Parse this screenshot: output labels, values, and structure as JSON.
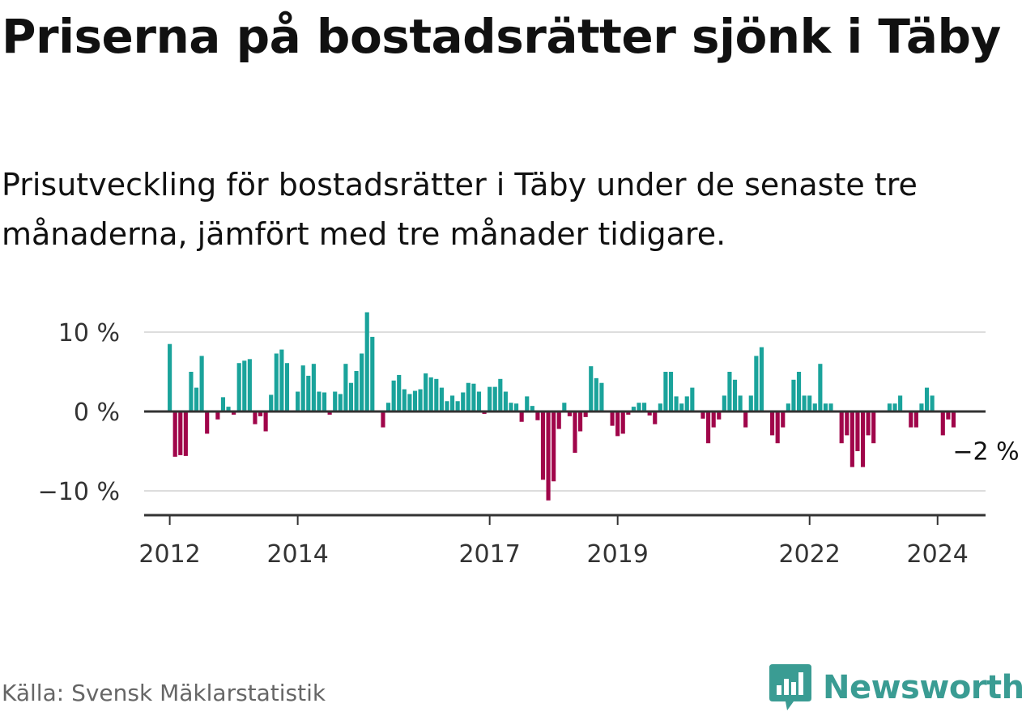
{
  "title": "Priserna på bostadsrätter sjönk i Täby",
  "subtitle": "Prisutveckling för bostadsrätter i Täby under de senaste tre månaderna, jämfört med tre månader tidigare.",
  "source": "Källa: Svensk Mäklarstatistik",
  "brand": {
    "name": "Newsworthy",
    "icon": "bar-chart-speech-bubble-icon"
  },
  "colors": {
    "positive": "#1aa39b",
    "negative": "#a0054a",
    "grid": "#dddddd",
    "axis": "#333333"
  },
  "chart_data": {
    "type": "bar",
    "title": "Priserna på bostadsrätter sjönk i Täby",
    "xlabel": "",
    "ylabel": "",
    "unit": "%",
    "ylim": [
      -13,
      13
    ],
    "y_ticks": [
      {
        "value": 10,
        "label": "10 %"
      },
      {
        "value": 0,
        "label": "0 %"
      },
      {
        "value": -10,
        "label": "−10 %"
      }
    ],
    "x_start": 2012.0,
    "x_step": 0.08333,
    "x_domain": [
      2011.6,
      2024.75
    ],
    "x_ticks": [
      {
        "value": 2012,
        "label": "2012"
      },
      {
        "value": 2014,
        "label": "2014"
      },
      {
        "value": 2017,
        "label": "2017"
      },
      {
        "value": 2019,
        "label": "2019"
      },
      {
        "value": 2022,
        "label": "2022"
      },
      {
        "value": 2024,
        "label": "2024"
      }
    ],
    "end_label": "−2 %",
    "values": [
      8.5,
      -5.7,
      -5.5,
      -5.6,
      5.0,
      3.0,
      7.0,
      -2.8,
      0,
      -1.0,
      1.8,
      0.6,
      -0.4,
      6.1,
      6.4,
      6.6,
      -1.6,
      -0.6,
      -2.5,
      2.1,
      7.3,
      7.8,
      6.1,
      0,
      2.5,
      5.8,
      4.5,
      6.0,
      2.5,
      2.4,
      -0.4,
      2.5,
      2.2,
      6.0,
      3.6,
      5.1,
      7.3,
      12.5,
      9.4,
      0,
      -2.0,
      1.1,
      3.9,
      4.6,
      2.8,
      2.2,
      2.6,
      2.8,
      4.8,
      4.3,
      4.1,
      3.0,
      1.3,
      2.0,
      1.3,
      2.4,
      3.6,
      3.5,
      2.5,
      -0.3,
      3.1,
      3.1,
      4.1,
      2.5,
      1.1,
      1.0,
      -1.3,
      1.9,
      0.7,
      -1.1,
      -8.6,
      -11.2,
      -8.8,
      -2.2,
      1.1,
      -0.6,
      -5.2,
      -2.5,
      -0.7,
      5.7,
      4.2,
      3.6,
      0,
      -1.8,
      -3.1,
      -2.8,
      -0.4,
      0.6,
      1.1,
      1.1,
      -0.5,
      -1.6,
      1.0,
      5.0,
      5.0,
      1.9,
      1.0,
      1.9,
      3.0,
      0,
      -0.9,
      -4.0,
      -2.0,
      -1.0,
      2.0,
      5.0,
      4.0,
      2.0,
      -2.0,
      2.0,
      7.0,
      8.1,
      0,
      -3.0,
      -4.0,
      -2.0,
      1.0,
      4.0,
      5.0,
      2.0,
      2.0,
      1.0,
      6.0,
      1.0,
      1.0,
      0,
      -4.0,
      -3.0,
      -7.0,
      -5.0,
      -7.0,
      -3.0,
      -4.0,
      0,
      0,
      1.0,
      1.0,
      2.0,
      0,
      -2.0,
      -2.0,
      1.0,
      3.0,
      2.0,
      0,
      -3.0,
      -1.0,
      -2.0
    ]
  }
}
